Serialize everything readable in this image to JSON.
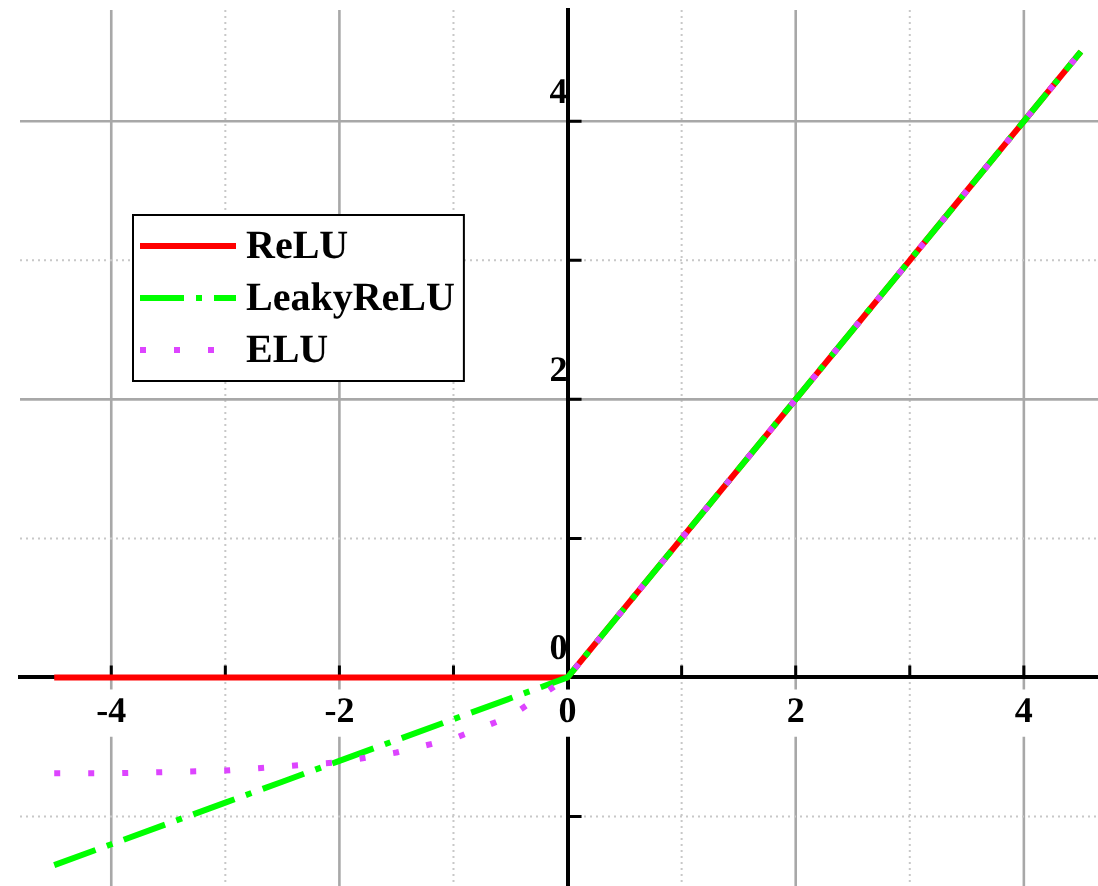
{
  "chart_data": {
    "type": "line",
    "x": [
      -4.5,
      -4,
      -3.5,
      -3,
      -2.5,
      -2,
      -1.5,
      -1,
      -0.5,
      0,
      0.5,
      1,
      1.5,
      2,
      2.5,
      3,
      3.5,
      4,
      4.5
    ],
    "series": [
      {
        "name": "ReLU",
        "color": "#ff0000",
        "line_style": "solid",
        "values": [
          0,
          0,
          0,
          0,
          0,
          0,
          0,
          0,
          0,
          0,
          0.5,
          1,
          1.5,
          2,
          2.5,
          3,
          3.5,
          4,
          4.5
        ]
      },
      {
        "name": "LeakyReLU",
        "color": "#00ff00",
        "line_style": "dashed",
        "values": [
          -1.35,
          -1.2,
          -1.05,
          -0.9,
          -0.75,
          -0.6,
          -0.45,
          -0.3,
          -0.15,
          0,
          0.5,
          1,
          1.5,
          2,
          2.5,
          3,
          3.5,
          4,
          4.5
        ]
      },
      {
        "name": "ELU",
        "color": "#dd44ff",
        "line_style": "dotted",
        "values": [
          -0.69,
          -0.69,
          -0.68,
          -0.67,
          -0.64,
          -0.61,
          -0.54,
          -0.44,
          -0.28,
          0,
          0.5,
          1,
          1.5,
          2,
          2.5,
          3,
          3.5,
          4,
          4.5
        ]
      }
    ],
    "xlim": [
      -4.8,
      4.65
    ],
    "ylim": [
      -1.5,
      4.8
    ],
    "xticks": [
      -4,
      {
        "value": -3,
        "label": null
      },
      -2,
      {
        "value": -1,
        "label": null
      },
      0,
      {
        "value": 1,
        "label": null
      },
      2,
      {
        "value": 3,
        "label": null
      },
      4
    ],
    "yticks": [
      {
        "value": -1,
        "label": null
      },
      0,
      {
        "value": 1,
        "label": null
      },
      2,
      {
        "value": 3,
        "label": null
      },
      4
    ],
    "grid": true,
    "legend": "top left"
  }
}
